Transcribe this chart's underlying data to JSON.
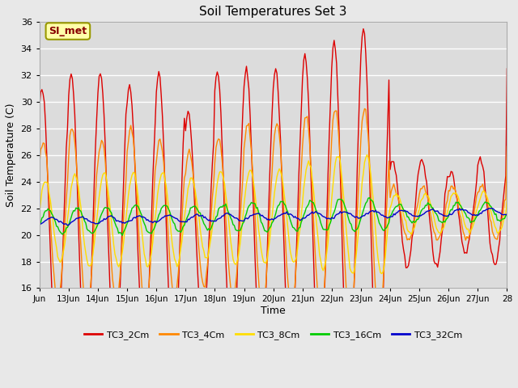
{
  "title": "Soil Temperatures Set 3",
  "xlabel": "Time",
  "ylabel": "Soil Temperature (C)",
  "ylim": [
    16,
    36
  ],
  "yticks": [
    16,
    18,
    20,
    22,
    24,
    26,
    28,
    30,
    32,
    34,
    36
  ],
  "series": [
    "TC3_2Cm",
    "TC3_4Cm",
    "TC3_8Cm",
    "TC3_16Cm",
    "TC3_32Cm"
  ],
  "colors": [
    "#dd0000",
    "#ff8800",
    "#ffdd00",
    "#00cc00",
    "#0000cc"
  ],
  "annotation_text": "SI_met",
  "background_color": "#e8e8e8",
  "plot_bg_color": "#dcdcdc",
  "xtick_labels": [
    "Jun",
    "13Jun",
    "14Jun",
    "15Jun",
    "16Jun",
    "17Jun",
    "18Jun",
    "19Jun",
    "20Jun",
    "21Jun",
    "22Jun",
    "23Jun",
    "24Jun",
    "25Jun",
    "26Jun",
    "27Jun",
    "28"
  ],
  "xtick_positions": [
    0,
    24,
    48,
    72,
    96,
    120,
    144,
    168,
    192,
    216,
    240,
    264,
    288,
    312,
    336,
    360,
    384
  ]
}
